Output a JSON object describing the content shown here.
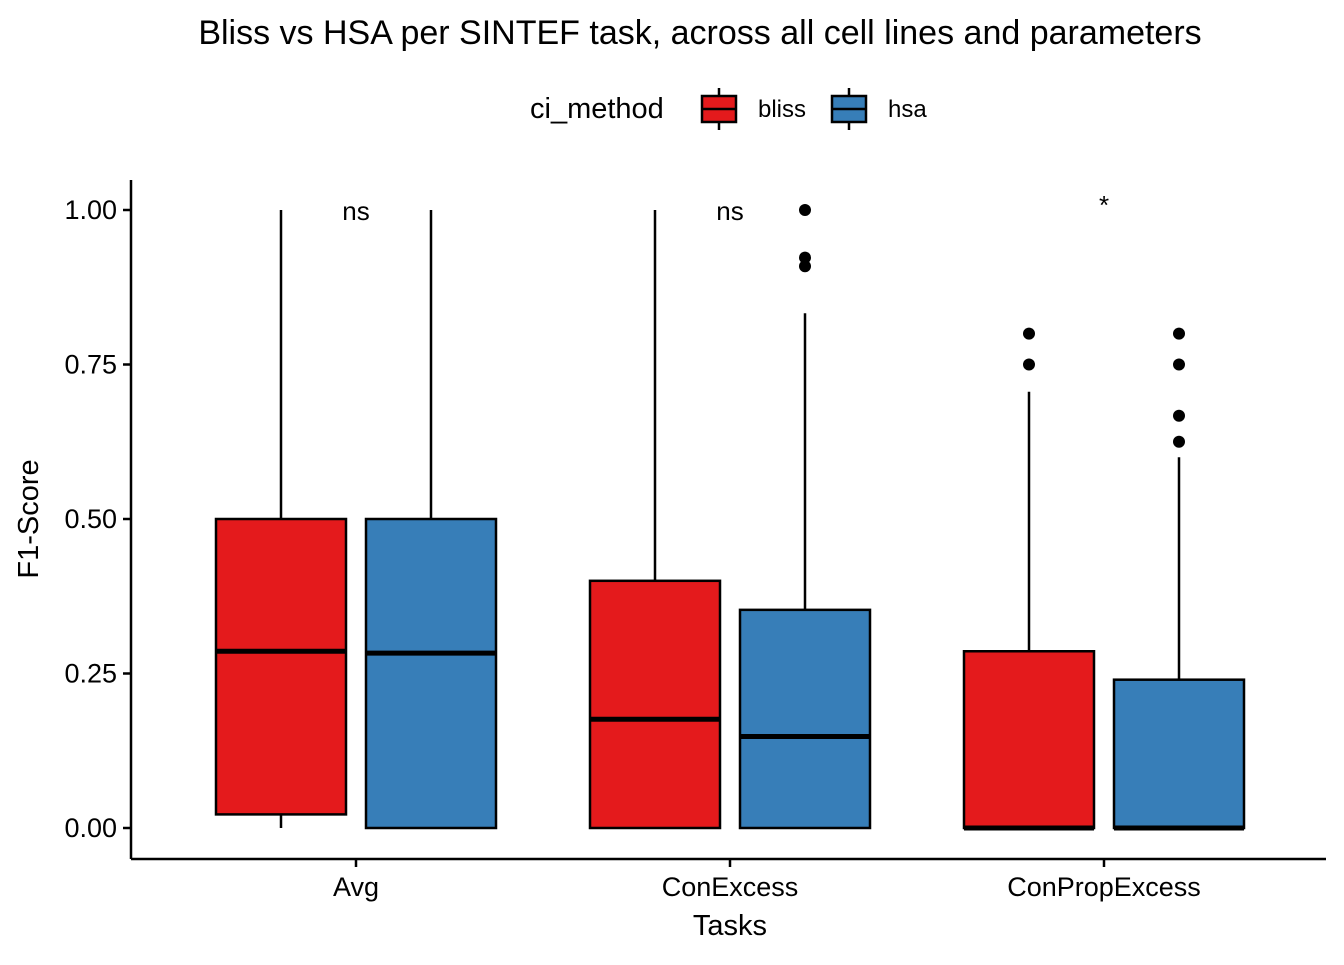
{
  "chart_data": {
    "type": "boxplot",
    "title": "Bliss vs HSA per SINTEF task, across all cell lines and parameters",
    "xlabel": "Tasks",
    "ylabel": "F1-Score",
    "ylim": [
      -0.05,
      1.05
    ],
    "yticks": [
      0,
      0.25,
      0.5,
      0.75,
      1.0
    ],
    "ytick_labels": [
      "0.00",
      "0.25",
      "0.50",
      "0.75",
      "1.00"
    ],
    "grid": false,
    "legend": {
      "title": "ci_method",
      "placement": "top",
      "entries": [
        {
          "label": "bliss",
          "color": "#E41A1C"
        },
        {
          "label": "hsa",
          "color": "#377EB8"
        }
      ]
    },
    "categories": [
      "Avg",
      "ConExcess",
      "ConPropExcess"
    ],
    "significance": [
      "ns",
      "ns",
      "*"
    ],
    "series": [
      {
        "name": "bliss",
        "color": "#E41A1C",
        "boxes": [
          {
            "whisker_low": 0.0,
            "q1": 0.022,
            "median": 0.286,
            "q3": 0.5,
            "whisker_high": 1.0,
            "outliers": []
          },
          {
            "whisker_low": 0.0,
            "q1": 0.0,
            "median": 0.176,
            "q3": 0.4,
            "whisker_high": 1.0,
            "outliers": []
          },
          {
            "whisker_low": 0.0,
            "q1": 0.0,
            "median": 0.0,
            "q3": 0.286,
            "whisker_high": 0.706,
            "outliers": [
              0.75,
              0.8
            ]
          }
        ]
      },
      {
        "name": "hsa",
        "color": "#377EB8",
        "boxes": [
          {
            "whisker_low": 0.0,
            "q1": 0.0,
            "median": 0.283,
            "q3": 0.5,
            "whisker_high": 1.0,
            "outliers": []
          },
          {
            "whisker_low": 0.0,
            "q1": 0.0,
            "median": 0.148,
            "q3": 0.353,
            "whisker_high": 0.833,
            "outliers": [
              0.909,
              0.923,
              1.0
            ]
          },
          {
            "whisker_low": 0.0,
            "q1": 0.0,
            "median": 0.0,
            "q3": 0.24,
            "whisker_high": 0.6,
            "outliers": [
              0.625,
              0.667,
              0.75,
              0.8
            ]
          }
        ]
      }
    ]
  }
}
